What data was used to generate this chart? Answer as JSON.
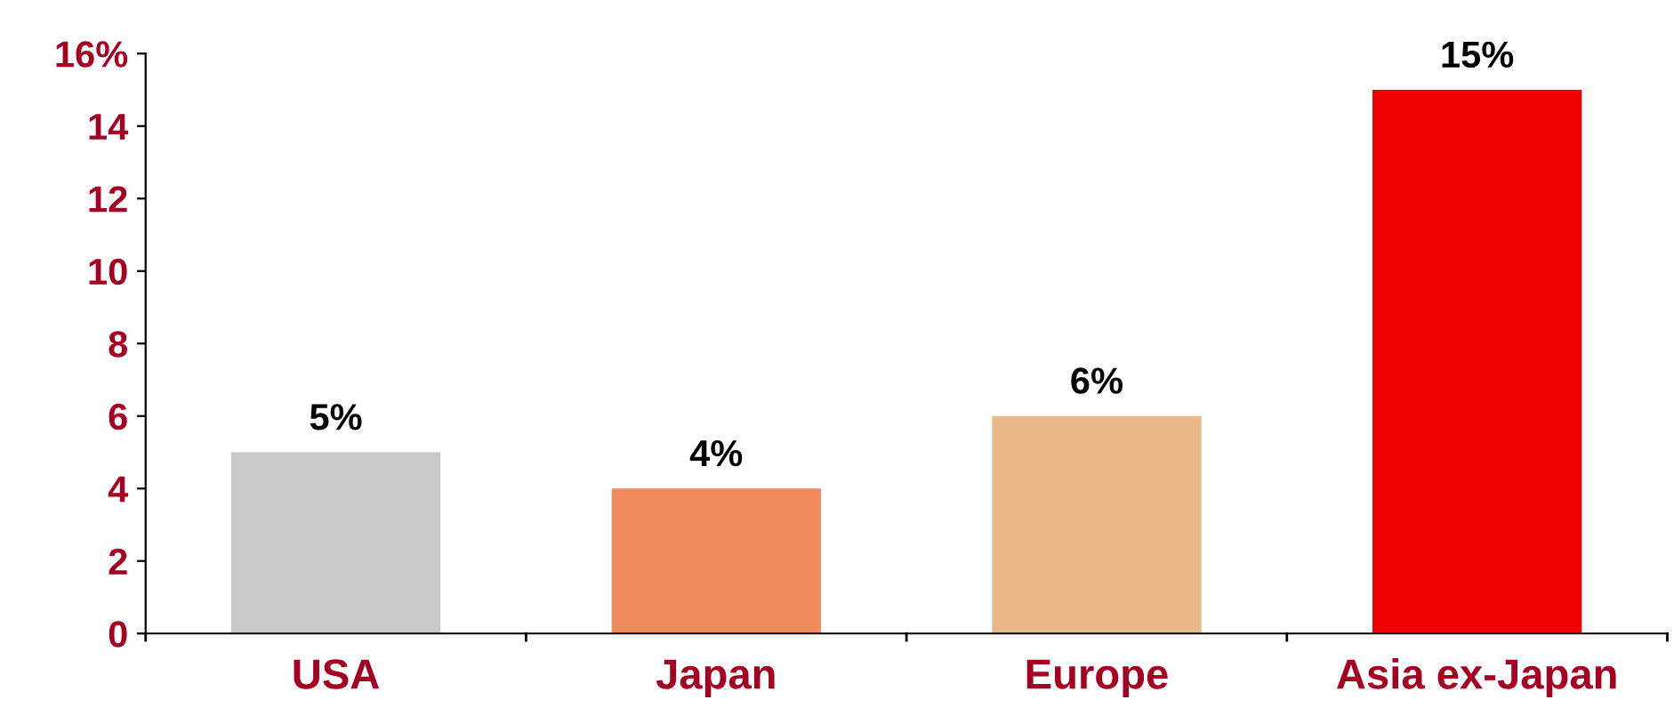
{
  "chart_data": {
    "type": "bar",
    "categories": [
      "USA",
      "Japan",
      "Europe",
      "Asia ex-Japan"
    ],
    "values": [
      5,
      4,
      6,
      15
    ],
    "colors": [
      "#c8c8c8",
      "#f08a5a",
      "#e8b888",
      "#ee0000"
    ],
    "value_labels": [
      "5%",
      "4%",
      "6%",
      "15%"
    ],
    "ylim": [
      0,
      16
    ],
    "yticks": [
      0,
      2,
      4,
      6,
      8,
      10,
      12,
      14,
      {
        "value": 16,
        "label": "16%"
      }
    ],
    "grid": false,
    "legend": false
  }
}
